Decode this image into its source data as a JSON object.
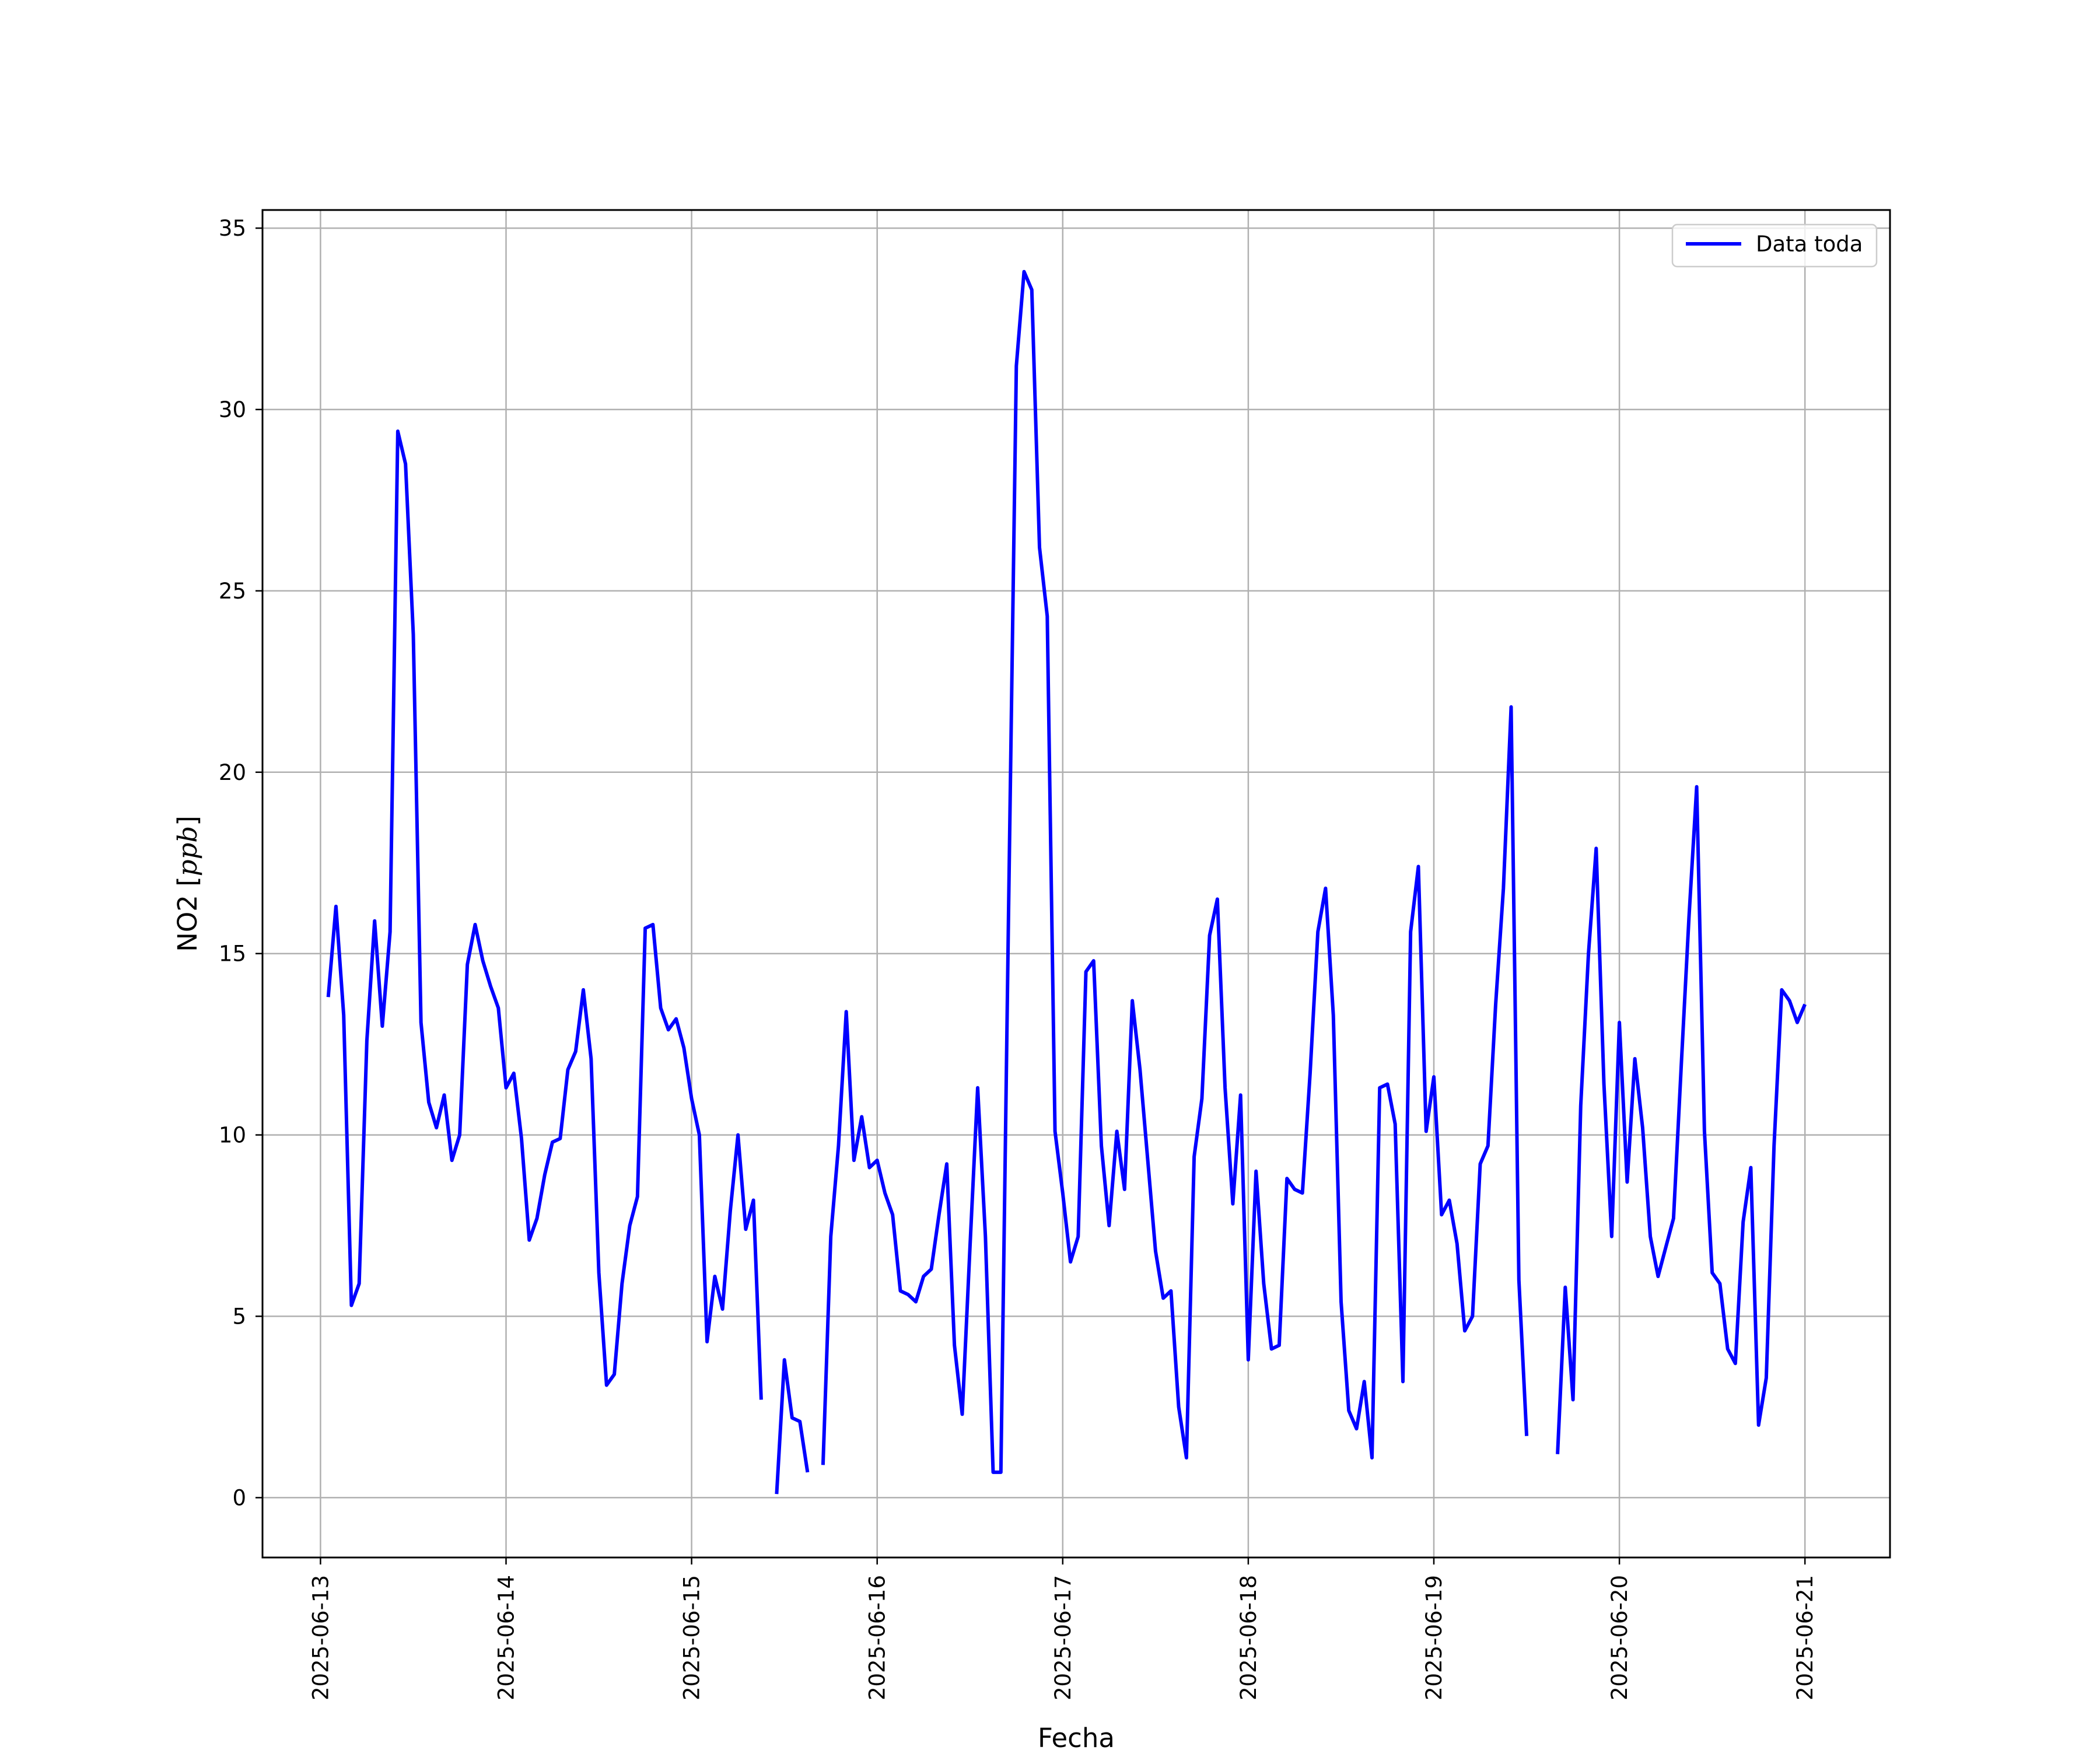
{
  "chart_data": {
    "type": "line",
    "title": "",
    "xlabel": "Fecha",
    "ylabel_text": "NO2 [",
    "ylabel_unit": "ppb",
    "ylabel_close": "]",
    "xlim": [
      "2025-06-12 16:30",
      "2025-06-21 11:00"
    ],
    "ylim": [
      -1.65,
      35.5
    ],
    "x_ticks": [
      "2025-06-13",
      "2025-06-14",
      "2025-06-15",
      "2025-06-16",
      "2025-06-17",
      "2025-06-18",
      "2025-06-19",
      "2025-06-20",
      "2025-06-21"
    ],
    "y_ticks": [
      "0",
      "5",
      "10",
      "15",
      "20",
      "25",
      "30",
      "35"
    ],
    "grid": true,
    "legend_position": "top-right",
    "series": [
      {
        "name": "Data toda",
        "color": "#0000ff",
        "points": [
          [
            "2025-06-13 01:00",
            13.8
          ],
          [
            "2025-06-13 02:00",
            16.3
          ],
          [
            "2025-06-13 03:00",
            13.3
          ],
          [
            "2025-06-13 04:00",
            5.3
          ],
          [
            "2025-06-13 05:00",
            5.9
          ],
          [
            "2025-06-13 06:00",
            12.6
          ],
          [
            "2025-06-13 07:00",
            15.9
          ],
          [
            "2025-06-13 08:00",
            13.0
          ],
          [
            "2025-06-13 09:00",
            15.6
          ],
          [
            "2025-06-13 10:00",
            29.4
          ],
          [
            "2025-06-13 11:00",
            28.5
          ],
          [
            "2025-06-13 12:00",
            23.8
          ],
          [
            "2025-06-13 13:00",
            13.1
          ],
          [
            "2025-06-13 14:00",
            10.9
          ],
          [
            "2025-06-13 15:00",
            10.2
          ],
          [
            "2025-06-13 16:00",
            11.1
          ],
          [
            "2025-06-13 17:00",
            9.3
          ],
          [
            "2025-06-13 18:00",
            10.0
          ],
          [
            "2025-06-13 19:00",
            14.7
          ],
          [
            "2025-06-13 20:00",
            15.8
          ],
          [
            "2025-06-13 21:00",
            14.8
          ],
          [
            "2025-06-13 22:00",
            14.1
          ],
          [
            "2025-06-13 23:00",
            13.5
          ],
          [
            "2025-06-14 00:00",
            11.3
          ],
          [
            "2025-06-14 01:00",
            11.7
          ],
          [
            "2025-06-14 02:00",
            9.9
          ],
          [
            "2025-06-14 03:00",
            7.1
          ],
          [
            "2025-06-14 04:00",
            7.7
          ],
          [
            "2025-06-14 05:00",
            8.9
          ],
          [
            "2025-06-14 06:00",
            9.8
          ],
          [
            "2025-06-14 07:00",
            9.9
          ],
          [
            "2025-06-14 08:00",
            11.8
          ],
          [
            "2025-06-14 09:00",
            12.3
          ],
          [
            "2025-06-14 10:00",
            14.0
          ],
          [
            "2025-06-14 11:00",
            12.1
          ],
          [
            "2025-06-14 12:00",
            6.2
          ],
          [
            "2025-06-14 13:00",
            3.1
          ],
          [
            "2025-06-14 14:00",
            3.4
          ],
          [
            "2025-06-14 15:00",
            5.9
          ],
          [
            "2025-06-14 16:00",
            7.5
          ],
          [
            "2025-06-14 17:00",
            8.3
          ],
          [
            "2025-06-14 18:00",
            15.7
          ],
          [
            "2025-06-14 19:00",
            15.8
          ],
          [
            "2025-06-14 20:00",
            13.5
          ],
          [
            "2025-06-14 21:00",
            12.9
          ],
          [
            "2025-06-14 22:00",
            13.2
          ],
          [
            "2025-06-14 23:00",
            12.4
          ],
          [
            "2025-06-15 00:00",
            11.0
          ],
          [
            "2025-06-15 01:00",
            10.0
          ],
          [
            "2025-06-15 02:00",
            4.3
          ],
          [
            "2025-06-15 03:00",
            6.1
          ],
          [
            "2025-06-15 04:00",
            5.2
          ],
          [
            "2025-06-15 05:00",
            7.9
          ],
          [
            "2025-06-15 06:00",
            10.0
          ],
          [
            "2025-06-15 07:00",
            7.4
          ],
          [
            "2025-06-15 08:00",
            8.2
          ],
          [
            "2025-06-15 09:00",
            2.7
          ],
          null,
          [
            "2025-06-15 11:00",
            0.1
          ],
          [
            "2025-06-15 12:00",
            3.8
          ],
          [
            "2025-06-15 13:00",
            2.2
          ],
          [
            "2025-06-15 14:00",
            2.1
          ],
          [
            "2025-06-15 15:00",
            0.7
          ],
          null,
          [
            "2025-06-15 17:00",
            0.9
          ],
          [
            "2025-06-15 18:00",
            7.2
          ],
          [
            "2025-06-15 19:00",
            9.7
          ],
          [
            "2025-06-15 20:00",
            13.4
          ],
          [
            "2025-06-15 21:00",
            9.3
          ],
          [
            "2025-06-15 22:00",
            10.5
          ],
          [
            "2025-06-15 23:00",
            9.1
          ],
          [
            "2025-06-16 00:00",
            9.3
          ],
          [
            "2025-06-16 01:00",
            8.4
          ],
          [
            "2025-06-16 02:00",
            7.8
          ],
          [
            "2025-06-16 03:00",
            5.7
          ],
          [
            "2025-06-16 04:00",
            5.6
          ],
          [
            "2025-06-16 05:00",
            5.4
          ],
          [
            "2025-06-16 06:00",
            6.1
          ],
          [
            "2025-06-16 07:00",
            6.3
          ],
          [
            "2025-06-16 08:00",
            7.8
          ],
          [
            "2025-06-16 09:00",
            9.2
          ],
          [
            "2025-06-16 10:00",
            4.2
          ],
          [
            "2025-06-16 11:00",
            2.3
          ],
          [
            "2025-06-16 12:00",
            6.9
          ],
          [
            "2025-06-16 13:00",
            11.3
          ],
          [
            "2025-06-16 14:00",
            7.2
          ],
          [
            "2025-06-16 15:00",
            0.7
          ],
          [
            "2025-06-16 16:00",
            0.7
          ],
          [
            "2025-06-16 17:00",
            16.2
          ],
          [
            "2025-06-16 18:00",
            31.2
          ],
          [
            "2025-06-16 19:00",
            33.8
          ],
          [
            "2025-06-16 20:00",
            33.3
          ],
          [
            "2025-06-16 21:00",
            26.2
          ],
          [
            "2025-06-16 22:00",
            24.3
          ],
          [
            "2025-06-16 23:00",
            10.1
          ],
          [
            "2025-06-17 00:00",
            8.4
          ],
          [
            "2025-06-17 01:00",
            6.5
          ],
          [
            "2025-06-17 02:00",
            7.2
          ],
          [
            "2025-06-17 03:00",
            14.5
          ],
          [
            "2025-06-17 04:00",
            14.8
          ],
          [
            "2025-06-17 05:00",
            9.7
          ],
          [
            "2025-06-17 06:00",
            7.5
          ],
          [
            "2025-06-17 07:00",
            10.1
          ],
          [
            "2025-06-17 08:00",
            8.5
          ],
          [
            "2025-06-17 09:00",
            13.7
          ],
          [
            "2025-06-17 10:00",
            11.8
          ],
          [
            "2025-06-17 11:00",
            9.3
          ],
          [
            "2025-06-17 12:00",
            6.8
          ],
          [
            "2025-06-17 13:00",
            5.5
          ],
          [
            "2025-06-17 14:00",
            5.7
          ],
          [
            "2025-06-17 15:00",
            2.5
          ],
          [
            "2025-06-17 16:00",
            1.1
          ],
          [
            "2025-06-17 17:00",
            9.4
          ],
          [
            "2025-06-17 18:00",
            11.0
          ],
          [
            "2025-06-17 19:00",
            15.5
          ],
          [
            "2025-06-17 20:00",
            16.5
          ],
          [
            "2025-06-17 21:00",
            11.3
          ],
          [
            "2025-06-17 22:00",
            8.1
          ],
          [
            "2025-06-17 23:00",
            11.1
          ],
          [
            "2025-06-18 00:00",
            3.8
          ],
          [
            "2025-06-18 01:00",
            9.0
          ],
          [
            "2025-06-18 02:00",
            5.9
          ],
          [
            "2025-06-18 03:00",
            4.1
          ],
          [
            "2025-06-18 04:00",
            4.2
          ],
          [
            "2025-06-18 05:00",
            8.8
          ],
          [
            "2025-06-18 06:00",
            8.5
          ],
          [
            "2025-06-18 07:00",
            8.4
          ],
          [
            "2025-06-18 08:00",
            11.7
          ],
          [
            "2025-06-18 09:00",
            15.6
          ],
          [
            "2025-06-18 10:00",
            16.8
          ],
          [
            "2025-06-18 11:00",
            13.3
          ],
          [
            "2025-06-18 12:00",
            5.4
          ],
          [
            "2025-06-18 13:00",
            2.4
          ],
          [
            "2025-06-18 14:00",
            1.9
          ],
          [
            "2025-06-18 15:00",
            3.2
          ],
          [
            "2025-06-18 16:00",
            1.1
          ],
          [
            "2025-06-18 17:00",
            11.3
          ],
          [
            "2025-06-18 18:00",
            11.4
          ],
          [
            "2025-06-18 19:00",
            10.3
          ],
          [
            "2025-06-18 20:00",
            3.2
          ],
          [
            "2025-06-18 21:00",
            15.6
          ],
          [
            "2025-06-18 22:00",
            17.4
          ],
          [
            "2025-06-18 23:00",
            10.1
          ],
          [
            "2025-06-19 00:00",
            11.6
          ],
          [
            "2025-06-19 01:00",
            7.8
          ],
          [
            "2025-06-19 02:00",
            8.2
          ],
          [
            "2025-06-19 03:00",
            7.0
          ],
          [
            "2025-06-19 04:00",
            4.6
          ],
          [
            "2025-06-19 05:00",
            5.0
          ],
          [
            "2025-06-19 06:00",
            9.2
          ],
          [
            "2025-06-19 07:00",
            9.7
          ],
          [
            "2025-06-19 08:00",
            13.6
          ],
          [
            "2025-06-19 09:00",
            16.8
          ],
          [
            "2025-06-19 10:00",
            21.8
          ],
          [
            "2025-06-19 11:00",
            6.0
          ],
          [
            "2025-06-19 12:00",
            1.7
          ],
          null,
          [
            "2025-06-19 16:00",
            1.2
          ],
          [
            "2025-06-19 17:00",
            5.8
          ],
          [
            "2025-06-19 18:00",
            2.7
          ],
          [
            "2025-06-19 19:00",
            10.8
          ],
          [
            "2025-06-19 20:00",
            15.0
          ],
          [
            "2025-06-19 21:00",
            17.9
          ],
          [
            "2025-06-19 22:00",
            11.4
          ],
          [
            "2025-06-19 23:00",
            7.2
          ],
          [
            "2025-06-20 00:00",
            13.1
          ],
          [
            "2025-06-20 01:00",
            8.7
          ],
          [
            "2025-06-20 02:00",
            12.1
          ],
          [
            "2025-06-20 03:00",
            10.2
          ],
          [
            "2025-06-20 04:00",
            7.2
          ],
          [
            "2025-06-20 05:00",
            6.1
          ],
          [
            "2025-06-20 06:00",
            6.9
          ],
          [
            "2025-06-20 07:00",
            7.7
          ],
          [
            "2025-06-20 08:00",
            11.9
          ],
          [
            "2025-06-20 09:00",
            16.0
          ],
          [
            "2025-06-20 10:00",
            19.6
          ],
          [
            "2025-06-20 11:00",
            10.1
          ],
          [
            "2025-06-20 12:00",
            6.2
          ],
          [
            "2025-06-20 13:00",
            5.9
          ],
          [
            "2025-06-20 14:00",
            4.1
          ],
          [
            "2025-06-20 15:00",
            3.7
          ],
          [
            "2025-06-20 16:00",
            7.6
          ],
          [
            "2025-06-20 17:00",
            9.1
          ],
          [
            "2025-06-20 18:00",
            2.0
          ],
          [
            "2025-06-20 19:00",
            3.3
          ],
          [
            "2025-06-20 20:00",
            9.7
          ],
          [
            "2025-06-20 21:00",
            14.0
          ],
          [
            "2025-06-20 22:00",
            13.7
          ],
          [
            "2025-06-20 23:00",
            13.1
          ],
          [
            "2025-06-21 00:00",
            13.6
          ]
        ]
      }
    ]
  }
}
